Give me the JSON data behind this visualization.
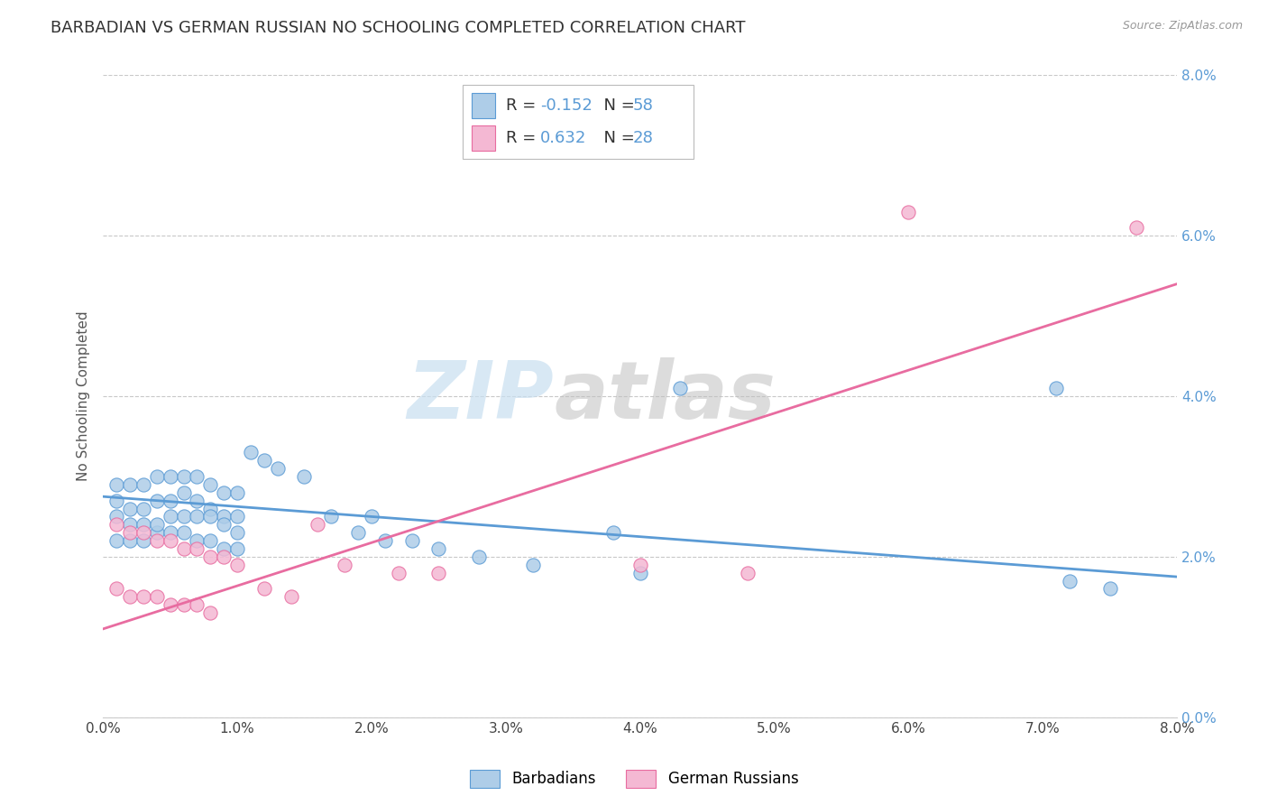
{
  "title": "BARBADIAN VS GERMAN RUSSIAN NO SCHOOLING COMPLETED CORRELATION CHART",
  "source": "Source: ZipAtlas.com",
  "ylabel": "No Schooling Completed",
  "watermark_zip": "ZIP",
  "watermark_atlas": "atlas",
  "xmin": 0.0,
  "xmax": 0.08,
  "ymin": 0.0,
  "ymax": 0.08,
  "yticks": [
    0.0,
    0.02,
    0.04,
    0.06,
    0.08
  ],
  "xticks": [
    0.0,
    0.01,
    0.02,
    0.03,
    0.04,
    0.05,
    0.06,
    0.07,
    0.08
  ],
  "legend_label_blue": "Barbadians",
  "legend_label_pink": "German Russians",
  "R_blue": -0.152,
  "N_blue": 58,
  "R_pink": 0.632,
  "N_pink": 28,
  "blue_scatter_x": [
    0.001,
    0.002,
    0.003,
    0.004,
    0.005,
    0.006,
    0.007,
    0.008,
    0.009,
    0.01,
    0.001,
    0.002,
    0.003,
    0.004,
    0.005,
    0.006,
    0.007,
    0.008,
    0.009,
    0.01,
    0.001,
    0.002,
    0.003,
    0.004,
    0.005,
    0.006,
    0.007,
    0.008,
    0.009,
    0.01,
    0.001,
    0.002,
    0.003,
    0.004,
    0.005,
    0.006,
    0.007,
    0.008,
    0.009,
    0.01,
    0.011,
    0.012,
    0.013,
    0.015,
    0.017,
    0.019,
    0.021,
    0.023,
    0.025,
    0.028,
    0.032,
    0.038,
    0.043,
    0.04,
    0.072,
    0.071,
    0.075,
    0.02
  ],
  "blue_scatter_y": [
    0.027,
    0.026,
    0.026,
    0.027,
    0.027,
    0.028,
    0.027,
    0.026,
    0.025,
    0.025,
    0.022,
    0.022,
    0.022,
    0.023,
    0.023,
    0.023,
    0.022,
    0.022,
    0.021,
    0.021,
    0.029,
    0.029,
    0.029,
    0.03,
    0.03,
    0.03,
    0.03,
    0.029,
    0.028,
    0.028,
    0.025,
    0.024,
    0.024,
    0.024,
    0.025,
    0.025,
    0.025,
    0.025,
    0.024,
    0.023,
    0.033,
    0.032,
    0.031,
    0.03,
    0.025,
    0.023,
    0.022,
    0.022,
    0.021,
    0.02,
    0.019,
    0.023,
    0.041,
    0.018,
    0.017,
    0.041,
    0.016,
    0.025
  ],
  "pink_scatter_x": [
    0.001,
    0.002,
    0.003,
    0.004,
    0.005,
    0.006,
    0.007,
    0.008,
    0.009,
    0.01,
    0.001,
    0.002,
    0.003,
    0.004,
    0.005,
    0.006,
    0.007,
    0.008,
    0.012,
    0.014,
    0.016,
    0.018,
    0.022,
    0.025,
    0.04,
    0.048,
    0.06,
    0.077
  ],
  "pink_scatter_y": [
    0.024,
    0.023,
    0.023,
    0.022,
    0.022,
    0.021,
    0.021,
    0.02,
    0.02,
    0.019,
    0.016,
    0.015,
    0.015,
    0.015,
    0.014,
    0.014,
    0.014,
    0.013,
    0.016,
    0.015,
    0.024,
    0.019,
    0.018,
    0.018,
    0.019,
    0.018,
    0.063,
    0.061
  ],
  "blue_line_x": [
    0.0,
    0.08
  ],
  "blue_line_y": [
    0.0275,
    0.0175
  ],
  "pink_line_x": [
    0.0,
    0.08
  ],
  "pink_line_y": [
    0.011,
    0.054
  ],
  "blue_color": "#5b9bd5",
  "blue_scatter_color": "#aecde8",
  "pink_color": "#e86ca0",
  "pink_scatter_color": "#f4b8d3",
  "background_color": "#ffffff",
  "grid_color": "#c8c8c8",
  "title_fontsize": 13,
  "axis_label_fontsize": 11,
  "tick_fontsize": 11,
  "legend_fontsize": 13
}
